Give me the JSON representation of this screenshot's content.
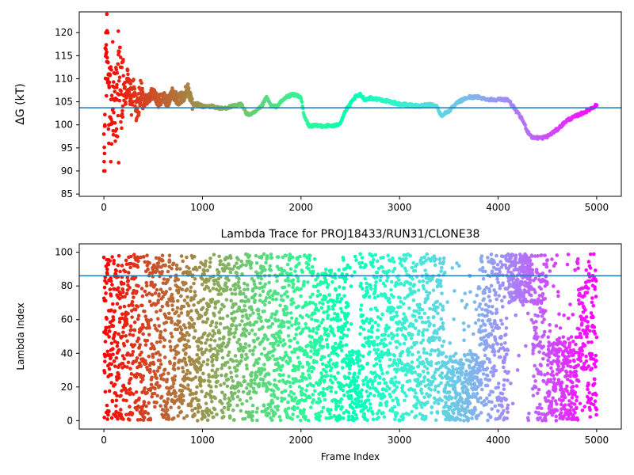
{
  "chart_data": [
    {
      "type": "scatter",
      "title": "",
      "xlabel": "",
      "ylabel": "ΔG (kT)",
      "xlim": [
        -250,
        5250
      ],
      "ylim": [
        84.5,
        124.5
      ],
      "xticks": [
        "0",
        "1000",
        "2000",
        "3000",
        "4000",
        "5000"
      ],
      "yticks": [
        "85",
        "90",
        "95",
        "100",
        "105",
        "110",
        "115",
        "120"
      ],
      "colormap": "rainbow (red at early frames → violet at late frames)",
      "reference_line": {
        "y": 103.7,
        "color": "#1f77b4"
      },
      "series_description": "Running free-energy estimate vs. frame index; scattered early (90–124), then converging to ~100–106 and ending near 104.3",
      "trace_points": [
        [
          0,
          90
        ],
        [
          10,
          100
        ],
        [
          20,
          120
        ],
        [
          25,
          110
        ],
        [
          30,
          124
        ],
        [
          40,
          113.7
        ],
        [
          50,
          100
        ],
        [
          60,
          105
        ],
        [
          70,
          108
        ],
        [
          80,
          102
        ],
        [
          90,
          106
        ],
        [
          100,
          104
        ],
        [
          110,
          103
        ],
        [
          120,
          107
        ],
        [
          130,
          102.5
        ],
        [
          140,
          105
        ],
        [
          150,
          116
        ],
        [
          160,
          109
        ],
        [
          180,
          104
        ],
        [
          200,
          108
        ],
        [
          220,
          106
        ],
        [
          240,
          110
        ],
        [
          260,
          107
        ],
        [
          280,
          105
        ],
        [
          300,
          108
        ],
        [
          320,
          104
        ],
        [
          340,
          103
        ],
        [
          360,
          106
        ],
        [
          380,
          107
        ],
        [
          400,
          105
        ],
        [
          450,
          106
        ],
        [
          500,
          107
        ],
        [
          550,
          105
        ],
        [
          600,
          106
        ],
        [
          650,
          105
        ],
        [
          700,
          107
        ],
        [
          750,
          105.5
        ],
        [
          800,
          106
        ],
        [
          850,
          108
        ],
        [
          900,
          104.5
        ],
        [
          950,
          104.5
        ],
        [
          1000,
          104
        ],
        [
          1100,
          104
        ],
        [
          1200,
          103.5
        ],
        [
          1300,
          104
        ],
        [
          1400,
          104.5
        ],
        [
          1450,
          102.3
        ],
        [
          1500,
          102.3
        ],
        [
          1550,
          103
        ],
        [
          1600,
          104
        ],
        [
          1650,
          106
        ],
        [
          1700,
          104
        ],
        [
          1750,
          104
        ],
        [
          1800,
          105
        ],
        [
          1850,
          106
        ],
        [
          1900,
          106.5
        ],
        [
          1950,
          106.5
        ],
        [
          2000,
          106
        ],
        [
          2030,
          102
        ],
        [
          2080,
          99.8
        ],
        [
          2200,
          99.8
        ],
        [
          2300,
          99.8
        ],
        [
          2350,
          99.8
        ],
        [
          2400,
          100.5
        ],
        [
          2450,
          103
        ],
        [
          2500,
          104.5
        ],
        [
          2550,
          106
        ],
        [
          2600,
          106.5
        ],
        [
          2650,
          105.5
        ],
        [
          2700,
          105.8
        ],
        [
          2800,
          105.5
        ],
        [
          2900,
          105
        ],
        [
          3000,
          104.5
        ],
        [
          3100,
          104.3
        ],
        [
          3200,
          104
        ],
        [
          3300,
          104.5
        ],
        [
          3380,
          104
        ],
        [
          3420,
          102
        ],
        [
          3500,
          103
        ],
        [
          3550,
          104
        ],
        [
          3600,
          105
        ],
        [
          3700,
          106
        ],
        [
          3800,
          106
        ],
        [
          3900,
          105.5
        ],
        [
          4000,
          105.5
        ],
        [
          4100,
          105.5
        ],
        [
          4150,
          104
        ],
        [
          4250,
          101
        ],
        [
          4300,
          98.5
        ],
        [
          4350,
          97.2
        ],
        [
          4450,
          97.2
        ],
        [
          4500,
          97.5
        ],
        [
          4600,
          99
        ],
        [
          4700,
          101
        ],
        [
          4800,
          102
        ],
        [
          4900,
          103
        ],
        [
          5000,
          104.3
        ]
      ]
    },
    {
      "type": "scatter",
      "title": "Lambda Trace for PROJ18433/RUN31/CLONE38",
      "xlabel": "Frame Index",
      "ylabel": "Lambda Index",
      "xlim": [
        -250,
        5250
      ],
      "ylim": [
        -5,
        105
      ],
      "xticks": [
        "0",
        "1000",
        "2000",
        "3000",
        "4000",
        "5000"
      ],
      "yticks": [
        "0",
        "20",
        "40",
        "60",
        "80",
        "100"
      ],
      "colormap": "rainbow (red at early frames → violet at late frames)",
      "reference_line": {
        "y": 86,
        "color": "#1f77b4"
      },
      "series_description": "Lambda index (0–99) sampled at each frame from 0 to 5000; points spread across the full range, with clustering near 80–99 around frames 4100–4350 and gaps around frames 2150–2400 and 3400–3450"
    }
  ],
  "colors": {
    "reference_line": "#1f77b4",
    "axis": "#000000"
  }
}
